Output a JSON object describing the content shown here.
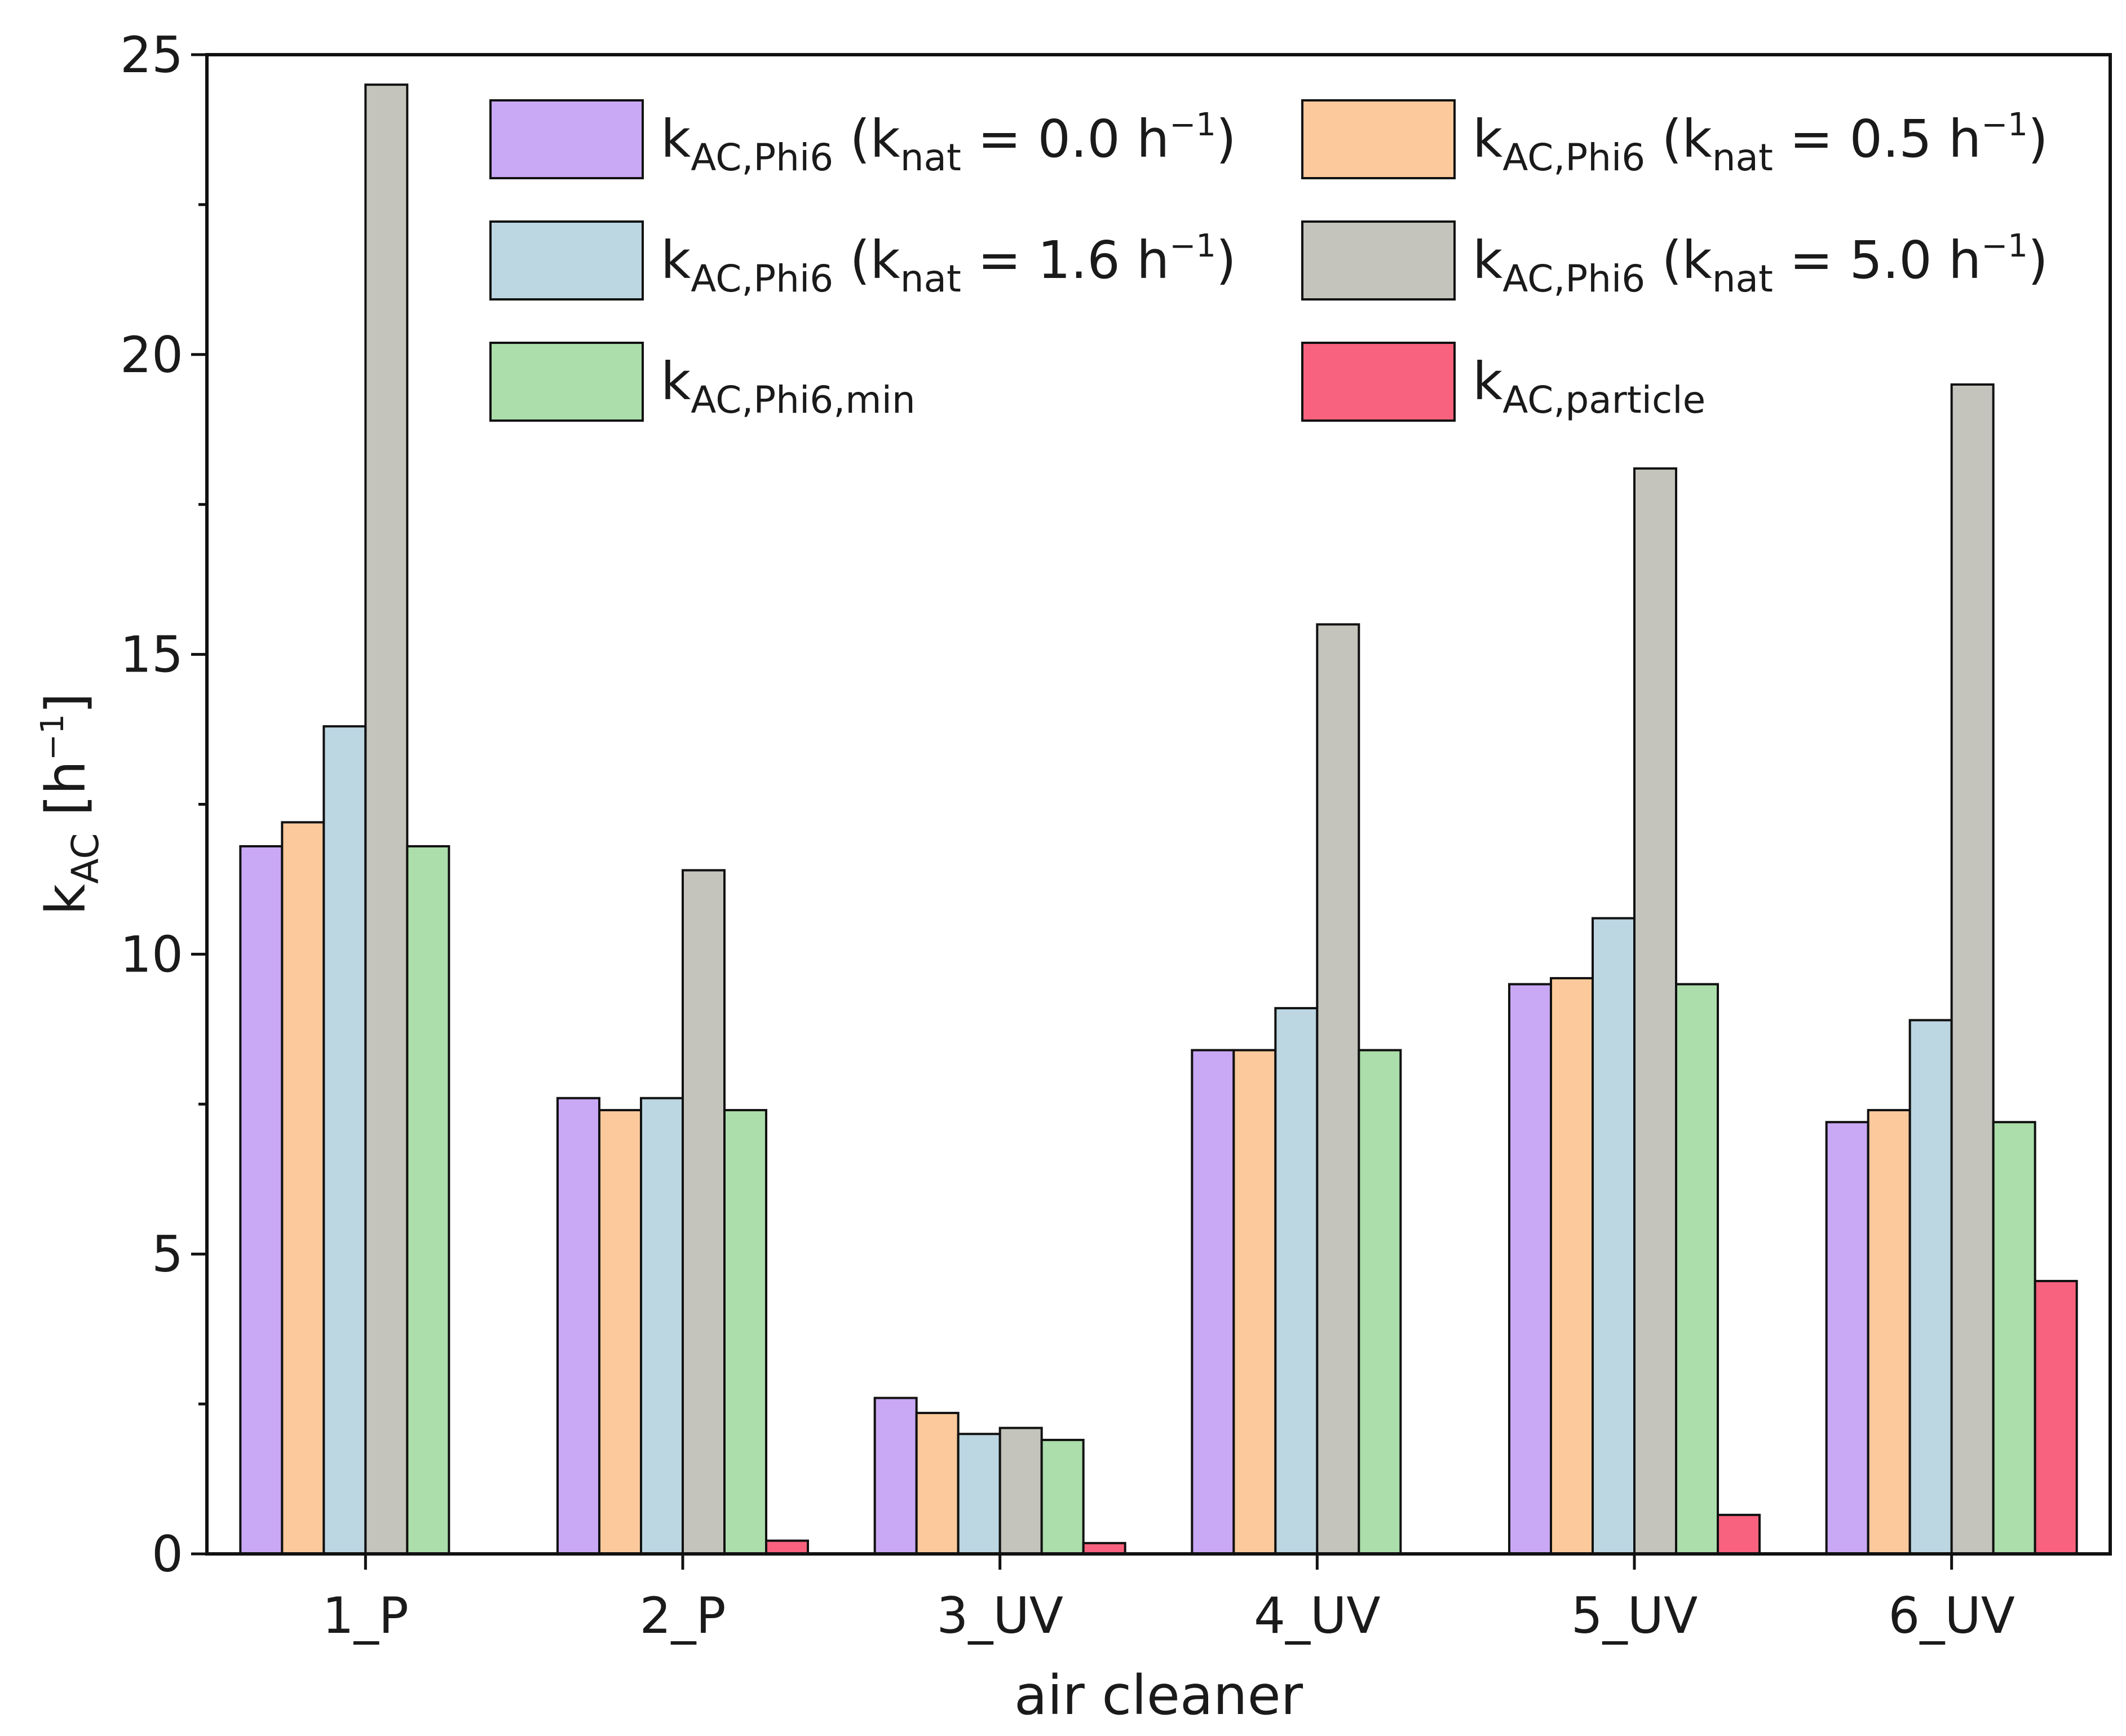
{
  "chart_data": {
    "type": "bar",
    "title": "",
    "xlabel": "air cleaner",
    "ylabel": {
      "base": "k",
      "sub": "AC",
      "rest": " [h",
      "sup": "−1",
      "close": "]"
    },
    "ylim": [
      0,
      25
    ],
    "yticks": [
      0,
      5,
      10,
      15,
      20,
      25
    ],
    "grid": false,
    "legend_position": "top, inside, two columns",
    "categories": [
      "1_P",
      "2_P",
      "3_UV",
      "4_UV",
      "5_UV",
      "6_UV"
    ],
    "series": [
      {
        "name": "kAC,Phi6 (knat = 0.0 h−1)",
        "color": "#c9a8f5",
        "label": {
          "base": "k",
          "sub": "AC,Phi6",
          "open": " (k",
          "sub2": "nat",
          "mid": " = 0.0 h",
          "sup": "−1",
          "close": ")"
        },
        "values": [
          11.8,
          7.6,
          2.6,
          8.4,
          9.5,
          7.2
        ]
      },
      {
        "name": "kAC,Phi6 (knat = 0.5 h−1)",
        "color": "#fbc99b",
        "label": {
          "base": "k",
          "sub": "AC,Phi6",
          "open": " (k",
          "sub2": "nat",
          "mid": " = 0.5 h",
          "sup": "−1",
          "close": ")"
        },
        "values": [
          12.2,
          7.4,
          2.35,
          8.4,
          9.6,
          7.4
        ]
      },
      {
        "name": "kAC,Phi6 (knat = 1.6 h−1)",
        "color": "#bcd6e2",
        "label": {
          "base": "k",
          "sub": "AC,Phi6",
          "open": " (k",
          "sub2": "nat",
          "mid": " = 1.6 h",
          "sup": "−1",
          "close": ")"
        },
        "values": [
          13.8,
          7.6,
          2.0,
          9.1,
          10.6,
          8.9
        ]
      },
      {
        "name": "kAC,Phi6 (knat = 5.0 h−1)",
        "color": "#c4c4bd",
        "label": {
          "base": "k",
          "sub": "AC,Phi6",
          "open": " (k",
          "sub2": "nat",
          "mid": " = 5.0 h",
          "sup": "−1",
          "close": ")"
        },
        "values": [
          24.5,
          11.4,
          2.1,
          15.5,
          18.1,
          19.5
        ]
      },
      {
        "name": "kAC,Phi6,min",
        "color": "#abdeaa",
        "label": {
          "base": "k",
          "sub": "AC,Phi6,min",
          "open": "",
          "sub2": "",
          "mid": "",
          "sup": "",
          "close": ""
        },
        "values": [
          11.8,
          7.4,
          1.9,
          8.4,
          9.5,
          7.2
        ]
      },
      {
        "name": "kAC,particle",
        "color": "#f8627e",
        "label": {
          "base": "k",
          "sub": "AC,particle",
          "open": "",
          "sub2": "",
          "mid": "",
          "sup": "",
          "close": ""
        },
        "values": [
          0,
          0.22,
          0.18,
          0,
          0.65,
          4.55
        ]
      }
    ]
  }
}
